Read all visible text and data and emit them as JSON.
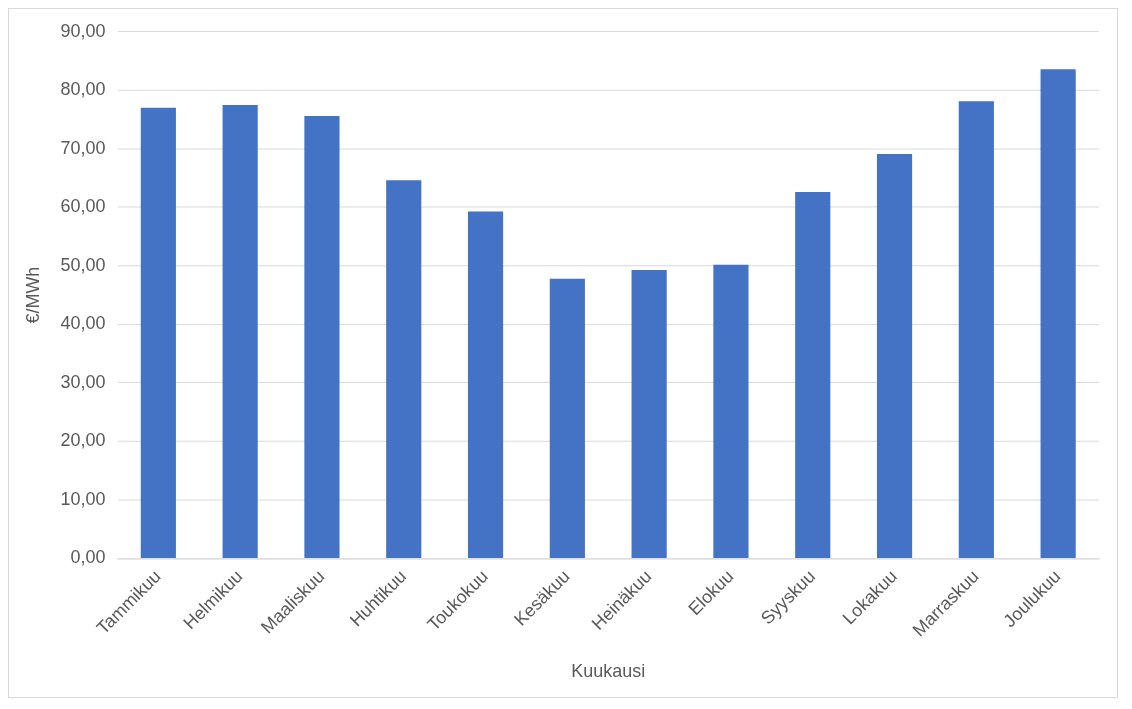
{
  "chart_data": {
    "type": "bar",
    "xlabel": "Kuukausi",
    "ylabel": "€/MWh",
    "categories": [
      "Tammikuu",
      "Helmikuu",
      "Maaliskuu",
      "Huhtikuu",
      "Toukokuu",
      "Kesäkuu",
      "Heinäkuu",
      "Elokuu",
      "Syyskuu",
      "Lokakuu",
      "Marraskuu",
      "Joulukuu"
    ],
    "values": [
      77.0,
      77.5,
      75.6,
      64.6,
      59.3,
      47.8,
      49.3,
      50.2,
      62.6,
      69.1,
      78.1,
      83.6
    ],
    "color": "#4472c4",
    "ylim": [
      0,
      90
    ],
    "yticks": [
      {
        "value": 0,
        "label": "0,00"
      },
      {
        "value": 10,
        "label": "10,00"
      },
      {
        "value": 20,
        "label": "20,00"
      },
      {
        "value": 30,
        "label": "30,00"
      },
      {
        "value": 40,
        "label": "40,00"
      },
      {
        "value": 50,
        "label": "50,00"
      },
      {
        "value": 60,
        "label": "60,00"
      },
      {
        "value": 70,
        "label": "70,00"
      },
      {
        "value": 80,
        "label": "80,00"
      },
      {
        "value": 90,
        "label": "90,00"
      }
    ],
    "grid": "y",
    "legend": false
  }
}
